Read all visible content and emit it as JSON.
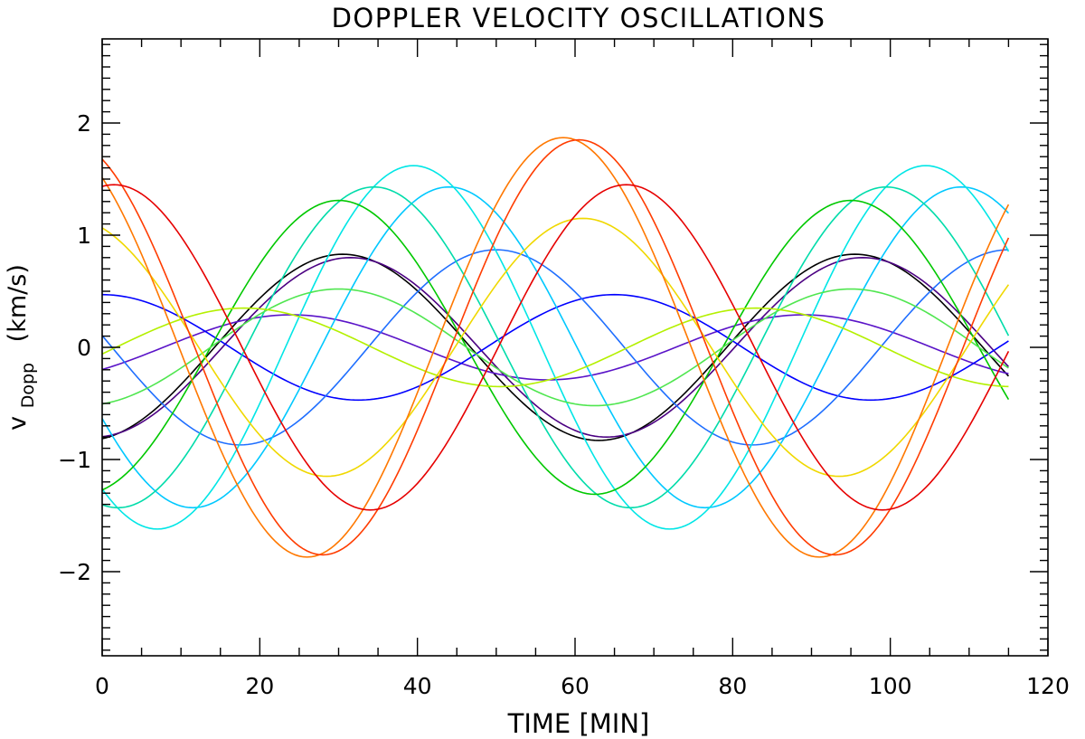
{
  "chart_data": {
    "type": "line",
    "title": "DOPPLER VELOCITY OSCILLATIONS",
    "xlabel": "TIME [MIN]",
    "ylabel_main": "v",
    "ylabel_sub": "Dopp",
    "ylabel_units": "(km/s)",
    "xlim": [
      0,
      120
    ],
    "ylim": [
      -2.75,
      2.75
    ],
    "xticks": [
      0,
      20,
      40,
      60,
      80,
      100,
      120
    ],
    "xtick_labels": [
      "0",
      "20",
      "40",
      "60",
      "80",
      "100",
      "120"
    ],
    "yticks": [
      -2,
      -1,
      0,
      1,
      2
    ],
    "ytick_labels": [
      "−2",
      "−1",
      "0",
      "1",
      "2"
    ],
    "x_range_minutes": [
      0,
      115
    ],
    "period_minutes": 65,
    "series": [
      {
        "name": "curve-black",
        "color": "#000000",
        "amplitude": 0.83,
        "peak_minute": 30.5
      },
      {
        "name": "curve-indigo",
        "color": "#4b0082",
        "amplitude": 0.8,
        "peak_minute": 31.5
      },
      {
        "name": "curve-violet",
        "color": "#5a14c8",
        "amplitude": 0.29,
        "peak_minute": 24
      },
      {
        "name": "curve-blue",
        "color": "#0000ff",
        "amplitude": 0.47,
        "peak_minute": 0
      },
      {
        "name": "curve-azure",
        "color": "#1e6eff",
        "amplitude": 0.87,
        "peak_minute": 50
      },
      {
        "name": "curve-skyblue",
        "color": "#00c8ff",
        "amplitude": 1.43,
        "peak_minute": 44
      },
      {
        "name": "curve-aqua",
        "color": "#00e6e6",
        "amplitude": 1.62,
        "peak_minute": 39.5
      },
      {
        "name": "curve-teal",
        "color": "#00dcaa",
        "amplitude": 1.43,
        "peak_minute": 34.5
      },
      {
        "name": "curve-green",
        "color": "#00c800",
        "amplitude": 1.31,
        "peak_minute": 30
      },
      {
        "name": "curve-lightgreen",
        "color": "#50e650",
        "amplitude": 0.52,
        "peak_minute": 30
      },
      {
        "name": "curve-lime",
        "color": "#b4f000",
        "amplitude": 0.35,
        "peak_minute": 18
      },
      {
        "name": "curve-yellow",
        "color": "#f0d800",
        "amplitude": 1.15,
        "peak_minute": 61
      },
      {
        "name": "curve-orange",
        "color": "#ff7800",
        "amplitude": 1.87,
        "peak_minute": 58.5
      },
      {
        "name": "curve-orangered",
        "color": "#ff3c00",
        "amplitude": 1.85,
        "peak_minute": 60.5
      },
      {
        "name": "curve-red",
        "color": "#e60000",
        "amplitude": 1.45,
        "peak_minute": 66.5
      }
    ]
  }
}
